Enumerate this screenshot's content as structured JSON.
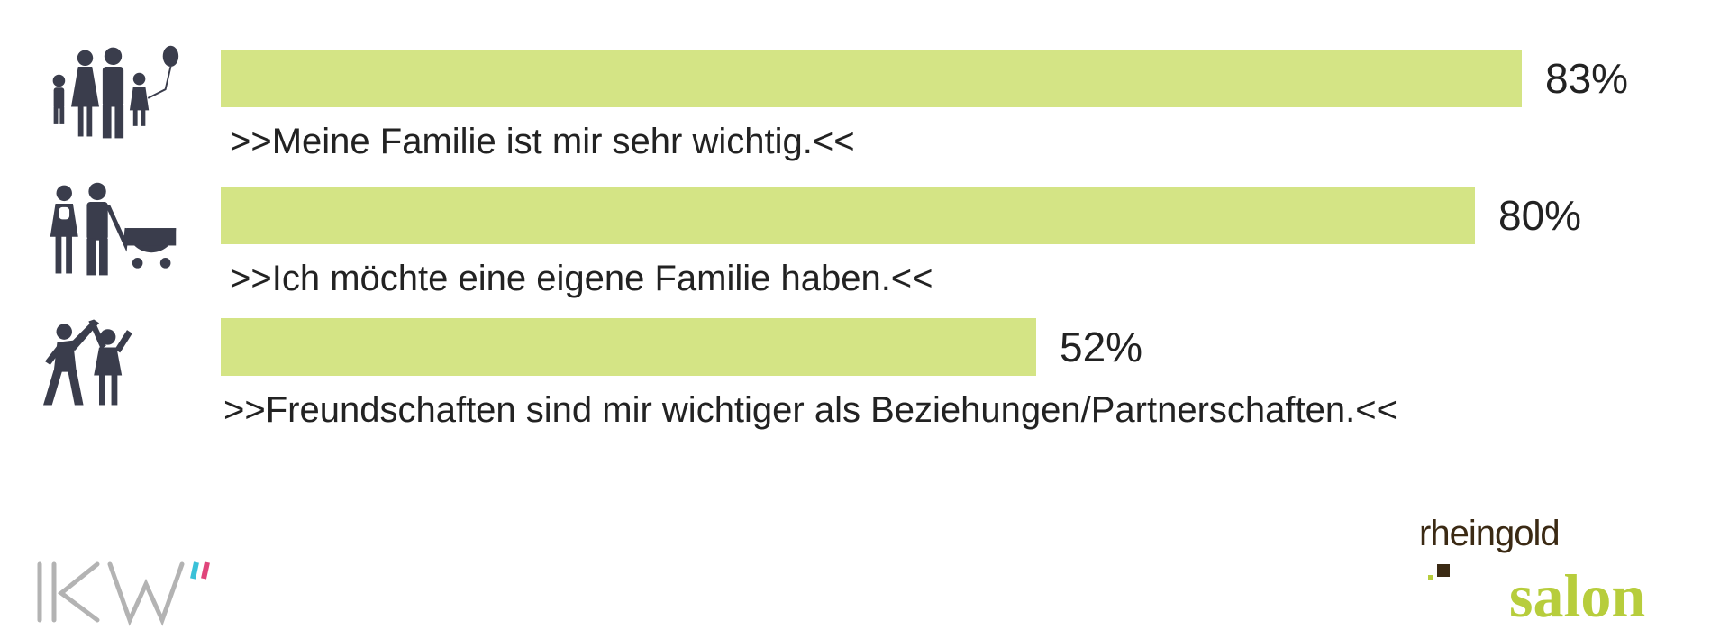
{
  "chart_data": {
    "type": "bar",
    "orientation": "horizontal",
    "categories": [
      ">>Meine Familie ist mir sehr wichtig.<<",
      ">>Ich möchte eine eigene Familie haben.<<",
      ">>Freundschaften sind mir wichtiger als Beziehungen/Partnerschaften.<<"
    ],
    "values": [
      83,
      80,
      52
    ],
    "labels": [
      "83%",
      "80%",
      "52%"
    ],
    "icons": [
      "family-icon",
      "parents-stroller-icon",
      "dancing-friends-icon"
    ],
    "bar_color": "#d4e485",
    "xlim": [
      0,
      100
    ],
    "grid": false
  },
  "logos": {
    "left": "IKW",
    "right_line1": "rheingold",
    "right_line2": "salon"
  },
  "colors": {
    "icon": "#3a3d4c",
    "text": "#222222",
    "brand_brown": "#3b2a14",
    "brand_green": "#b7cd3c"
  }
}
